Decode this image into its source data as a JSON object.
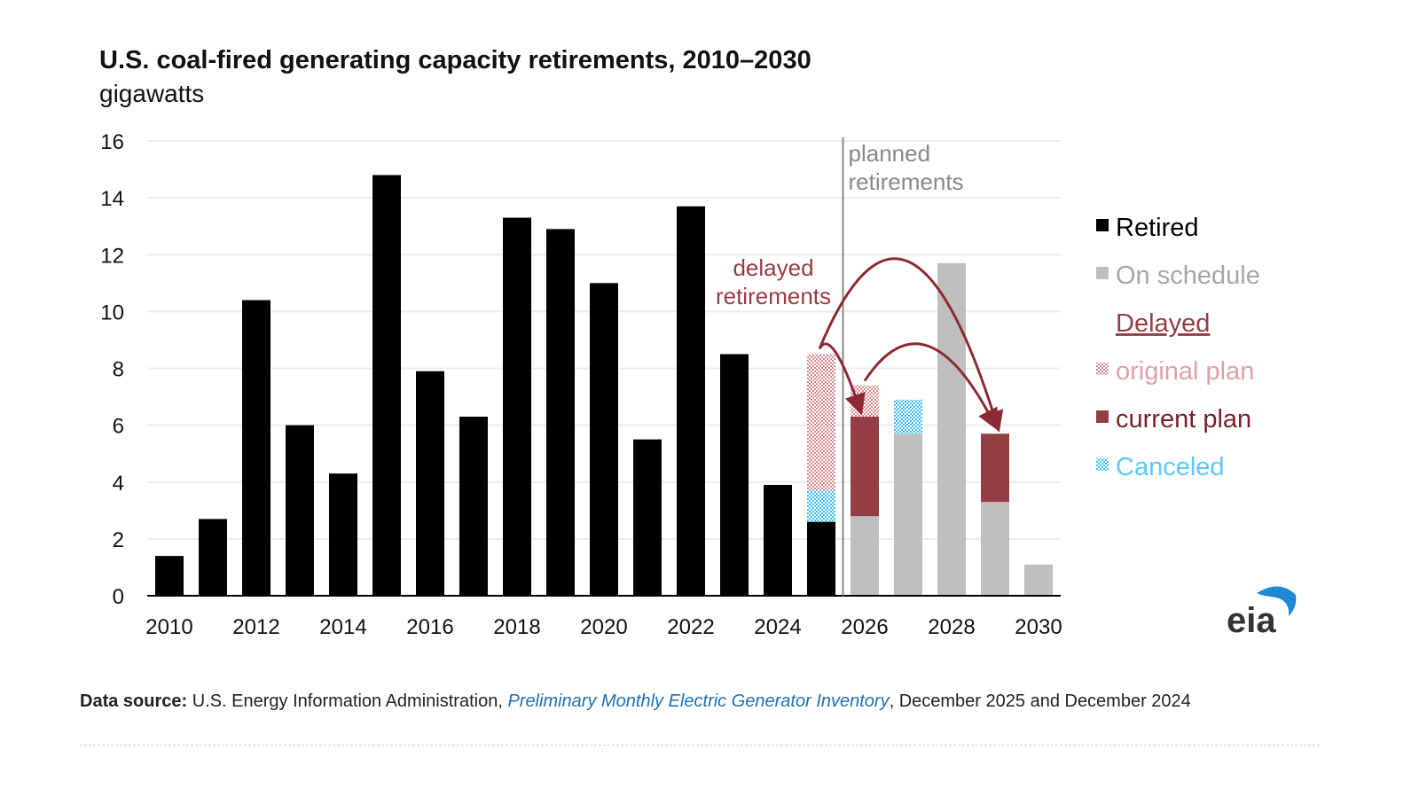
{
  "chart_data": {
    "type": "bar",
    "stacked": true,
    "title": "U.S. coal-fired generating capacity retirements, 2010–2030",
    "ylabel": "gigawatts",
    "ylim": [
      0,
      16
    ],
    "yticks": [
      0,
      2,
      4,
      6,
      8,
      10,
      12,
      14,
      16
    ],
    "xticks": [
      "2010",
      "2012",
      "2014",
      "2016",
      "2018",
      "2020",
      "2022",
      "2024",
      "2026",
      "2028",
      "2030"
    ],
    "grid": true,
    "categories": [
      "2010",
      "2011",
      "2012",
      "2013",
      "2014",
      "2015",
      "2016",
      "2017",
      "2018",
      "2019",
      "2020",
      "2021",
      "2022",
      "2023",
      "2024",
      "2025",
      "2026",
      "2027",
      "2028",
      "2029",
      "2030"
    ],
    "series": [
      {
        "name": "Retired",
        "color": "#000000",
        "values": [
          1.4,
          2.7,
          10.4,
          6.0,
          4.3,
          14.8,
          7.9,
          6.3,
          13.3,
          12.9,
          11.0,
          5.5,
          13.7,
          8.5,
          3.9,
          2.6,
          0,
          0,
          0,
          0,
          0
        ]
      },
      {
        "name": "On schedule",
        "color": "#bfbfbf",
        "values": [
          0,
          0,
          0,
          0,
          0,
          0,
          0,
          0,
          0,
          0,
          0,
          0,
          0,
          0,
          0,
          0,
          2.8,
          5.7,
          11.7,
          3.3,
          1.1
        ]
      },
      {
        "name": "current plan",
        "group": "Delayed",
        "color": "#953d44",
        "values": [
          0,
          0,
          0,
          0,
          0,
          0,
          0,
          0,
          0,
          0,
          0,
          0,
          0,
          0,
          0,
          0,
          3.5,
          0,
          0,
          2.4,
          0
        ]
      },
      {
        "name": "Canceled",
        "color": "#5bc8f5",
        "pattern": "checker",
        "values": [
          0,
          0,
          0,
          0,
          0,
          0,
          0,
          0,
          0,
          0,
          0,
          0,
          0,
          0,
          0,
          1.1,
          0,
          1.2,
          0,
          0,
          0
        ]
      },
      {
        "name": "original plan",
        "group": "Delayed",
        "color": "#e6a3aa",
        "pattern": "checker",
        "values": [
          0,
          0,
          0,
          0,
          0,
          0,
          0,
          0,
          0,
          0,
          0,
          0,
          0,
          0,
          0,
          4.8,
          1.1,
          0,
          0,
          0,
          0
        ]
      }
    ],
    "legend": {
      "placement": "right",
      "group_heading": "Delayed",
      "entries": [
        "Retired",
        "On schedule",
        "Delayed",
        "original plan",
        "current plan",
        "Canceled"
      ]
    },
    "annotations": {
      "planned": "planned\nretirements",
      "delayed": "delayed\nretirements"
    }
  },
  "source": {
    "label": "Data source:",
    "text1": " U.S. Energy Information Administration, ",
    "link": "Preliminary Monthly Electric Generator Inventory",
    "text2": ", December 2025 and December 2024"
  },
  "logo": "eia"
}
